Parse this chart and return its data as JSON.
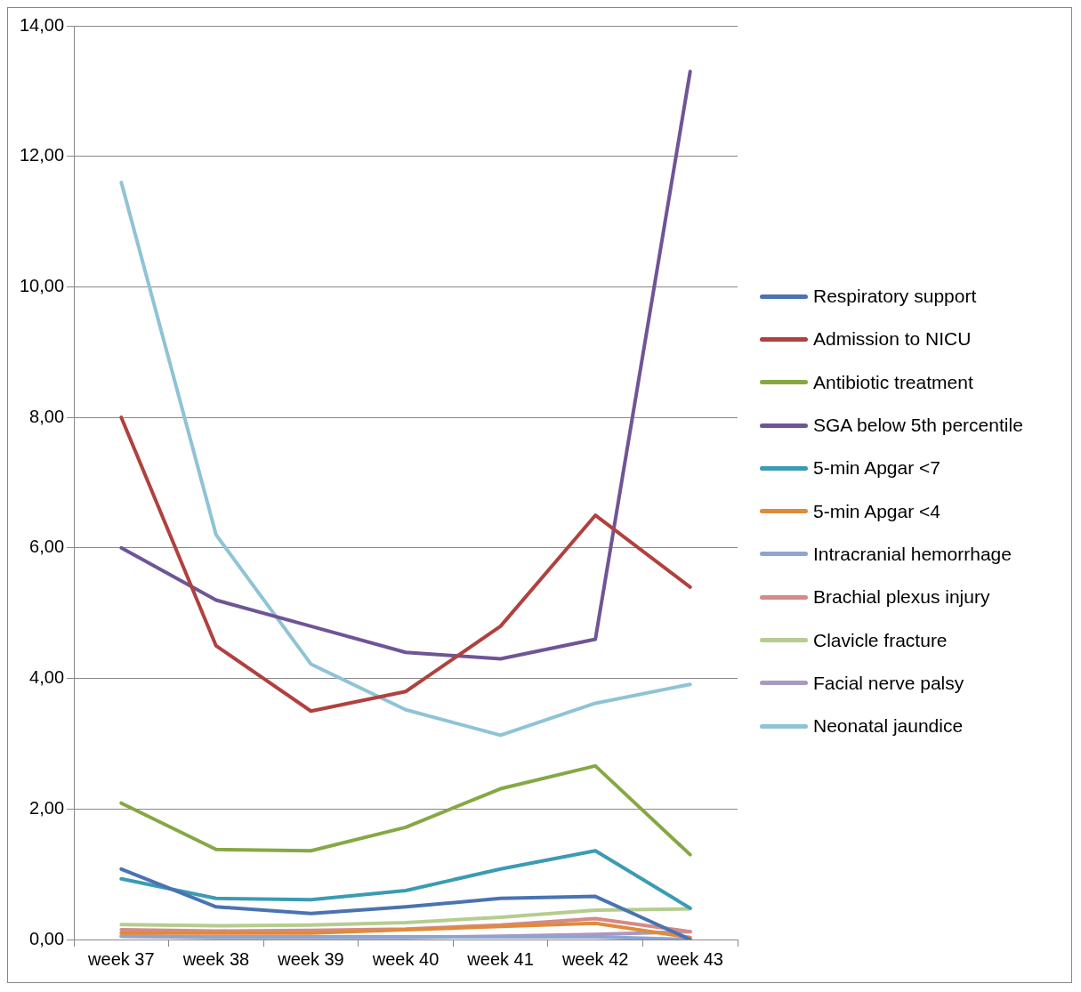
{
  "chart_data": {
    "type": "line",
    "categories": [
      "week 37",
      "week 38",
      "week 39",
      "week 40",
      "week 41",
      "week 42",
      "week 43"
    ],
    "ylim": [
      0,
      14
    ],
    "yticks": [
      {
        "value": 0,
        "label": "0,00"
      },
      {
        "value": 2,
        "label": "2,00"
      },
      {
        "value": 4,
        "label": "4,00"
      },
      {
        "value": 6,
        "label": "6,00"
      },
      {
        "value": 8,
        "label": "8,00"
      },
      {
        "value": 10,
        "label": "10,00"
      },
      {
        "value": 12,
        "label": "12,00"
      },
      {
        "value": 14,
        "label": "14,00"
      }
    ],
    "grid": "y",
    "legend": "right",
    "marker": "none",
    "line_style": "solid",
    "series": [
      {
        "name": "Respiratory support",
        "color": "#4a73b0",
        "values": [
          1.08,
          0.5,
          0.4,
          0.5,
          0.63,
          0.66,
          0.0
        ]
      },
      {
        "name": "Admission to NICU",
        "color": "#b0413e",
        "values": [
          8.0,
          4.5,
          3.5,
          3.8,
          4.8,
          6.5,
          5.4
        ]
      },
      {
        "name": "Antibiotic treatment",
        "color": "#86a844",
        "values": [
          2.09,
          1.38,
          1.36,
          1.72,
          2.31,
          2.66,
          1.3
        ]
      },
      {
        "name": "SGA below 5th percentile",
        "color": "#6e5596",
        "values": [
          6.0,
          5.2,
          4.8,
          4.4,
          4.3,
          4.6,
          13.3
        ]
      },
      {
        "name": "5-min Apgar <7",
        "color": "#3b9bb3",
        "values": [
          0.93,
          0.63,
          0.61,
          0.75,
          1.08,
          1.36,
          0.48
        ]
      },
      {
        "name": "5-min Apgar <4",
        "color": "#e08a3c",
        "values": [
          0.1,
          0.1,
          0.1,
          0.15,
          0.2,
          0.25,
          0.03
        ]
      },
      {
        "name": "Intracranial hemorrhage",
        "color": "#8ea5d0",
        "values": [
          0.05,
          0.04,
          0.04,
          0.04,
          0.04,
          0.04,
          0.0
        ]
      },
      {
        "name": "Brachial plexus injury",
        "color": "#d48a88",
        "values": [
          0.15,
          0.13,
          0.14,
          0.16,
          0.22,
          0.32,
          0.12
        ]
      },
      {
        "name": "Clavicle fracture",
        "color": "#b5cd8e",
        "values": [
          0.23,
          0.21,
          0.22,
          0.26,
          0.34,
          0.45,
          0.47
        ]
      },
      {
        "name": "Facial nerve palsy",
        "color": "#a899c2",
        "values": [
          0.05,
          0.03,
          0.03,
          0.03,
          0.05,
          0.08,
          0.12
        ]
      },
      {
        "name": "Neonatal jaundice",
        "color": "#8fc3d6",
        "values": [
          11.6,
          6.2,
          4.22,
          3.52,
          3.13,
          3.62,
          3.91
        ]
      }
    ]
  }
}
